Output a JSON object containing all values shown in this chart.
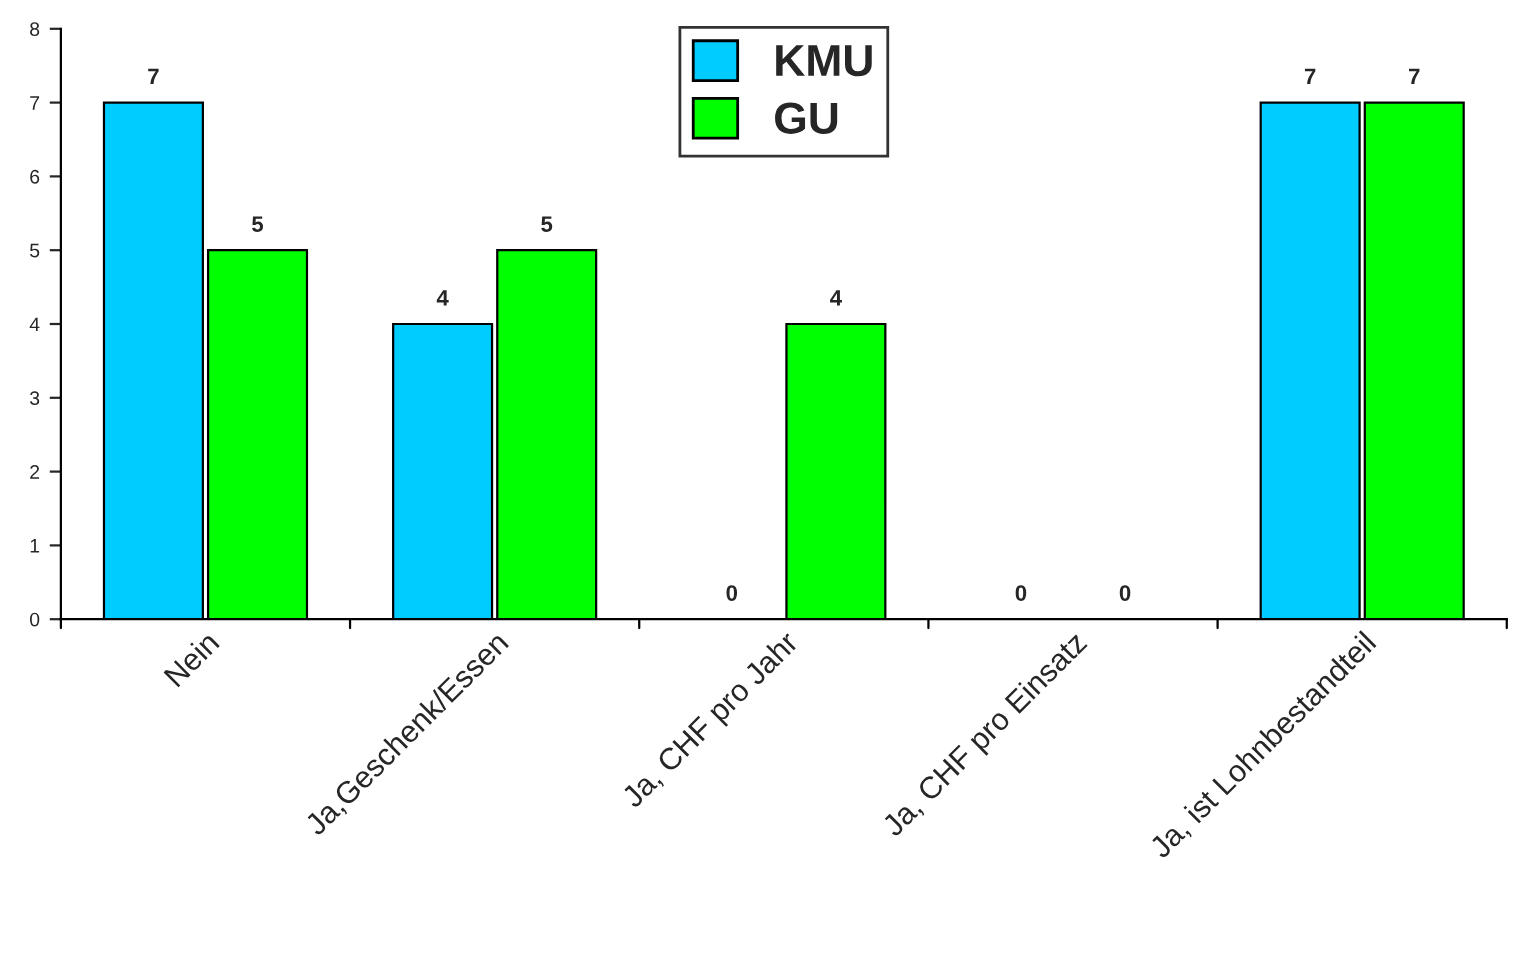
{
  "chart_data": {
    "type": "bar",
    "categories": [
      "Nein",
      "Ja,Geschenk/Essen",
      "Ja, CHF pro Jahr",
      "Ja, CHF pro Einsatz",
      "Ja, ist Lohnbestandteil"
    ],
    "series": [
      {
        "name": "KMU",
        "color": "#00ccff",
        "values": [
          7,
          4,
          0,
          0,
          7
        ]
      },
      {
        "name": "GU",
        "color": "#00ff00",
        "values": [
          5,
          5,
          4,
          0,
          7
        ]
      }
    ],
    "ylim": [
      0,
      8
    ],
    "yticks": [
      0,
      1,
      2,
      3,
      4,
      5,
      6,
      7,
      8
    ],
    "grid": false,
    "legend": "top",
    "data_labels": true
  }
}
